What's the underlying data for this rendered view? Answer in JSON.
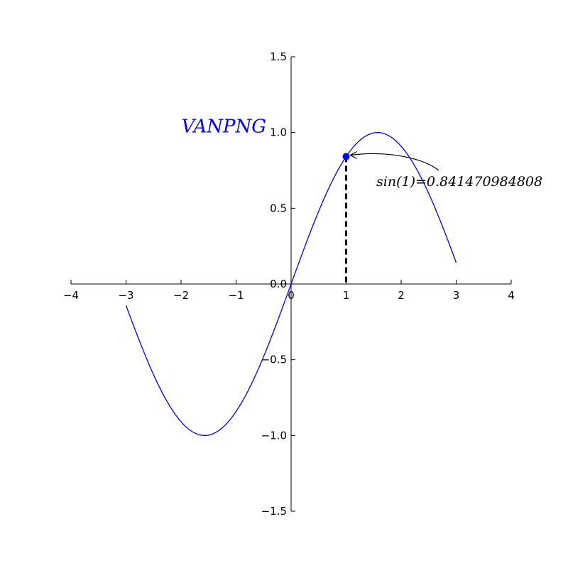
{
  "chart_data": {
    "type": "line",
    "title": "",
    "xlabel": "",
    "ylabel": "",
    "xlim": [
      -4,
      4
    ],
    "ylim": [
      -1.5,
      1.5
    ],
    "xticks": [
      -4,
      -3,
      -2,
      -1,
      0,
      1,
      2,
      3,
      4
    ],
    "xtick_labels": [
      "−4",
      "−3",
      "−2",
      "−1",
      "0",
      "1",
      "2",
      "3",
      "4"
    ],
    "yticks": [
      -1.5,
      -1.0,
      -0.5,
      0.0,
      0.5,
      1.0,
      1.5
    ],
    "ytick_labels": [
      "−1.5",
      "−1.0",
      "−0.5",
      "0.0",
      "0.5",
      "1.0",
      "1.5"
    ],
    "grid": false,
    "spines": "centered",
    "series": [
      {
        "function": "sin(x)",
        "x_range": [
          -3,
          3
        ],
        "color": "#0000ff"
      }
    ],
    "highlight_point": {
      "x": 1,
      "y": 0.841470984808,
      "color": "#0000ff"
    },
    "text_label": {
      "text": "VANPNG",
      "x": -2.0,
      "y": 1.0,
      "color": "#0000ff"
    },
    "annotation": {
      "text": "sin(1)=0.841470984808",
      "arrow_to": [
        1,
        0.841470984808
      ]
    }
  }
}
